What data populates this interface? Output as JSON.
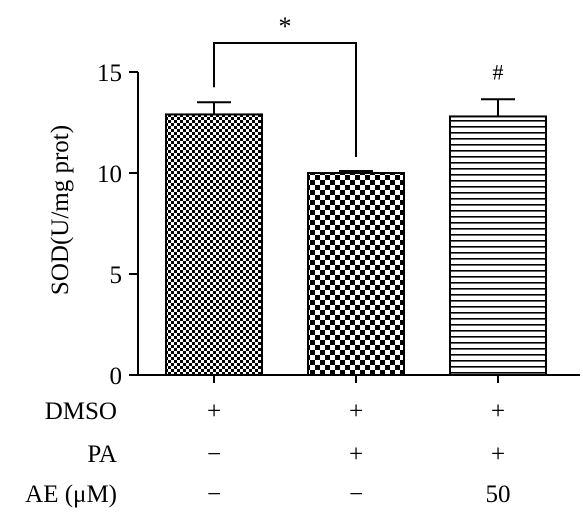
{
  "chart_data": {
    "type": "bar",
    "ylabel": "SOD(U/mg prot)",
    "ylim": [
      0,
      15
    ],
    "yticks": [
      "0",
      "5",
      "10",
      "15"
    ],
    "ytick_values": [
      0,
      5,
      10,
      15
    ],
    "bars": [
      {
        "value": 12.9,
        "error": 0.6,
        "pattern": "checker-fine",
        "annotation": ""
      },
      {
        "value": 10.0,
        "error": 0.1,
        "pattern": "checker-coarse",
        "annotation": ""
      },
      {
        "value": 12.8,
        "error": 0.85,
        "pattern": "horizontal-stripes",
        "annotation": "#"
      }
    ],
    "comparison": {
      "from": 0,
      "to": 1,
      "label": "*"
    },
    "treatment_rows": [
      {
        "label": "DMSO",
        "values": [
          "+",
          "+",
          "+"
        ]
      },
      {
        "label": "PA",
        "values": [
          "−",
          "+",
          "+"
        ]
      },
      {
        "label": "AE (μM)",
        "values": [
          "−",
          "−",
          "50"
        ]
      }
    ],
    "colors": {
      "ink": "#000000",
      "background": "#ffffff"
    }
  }
}
